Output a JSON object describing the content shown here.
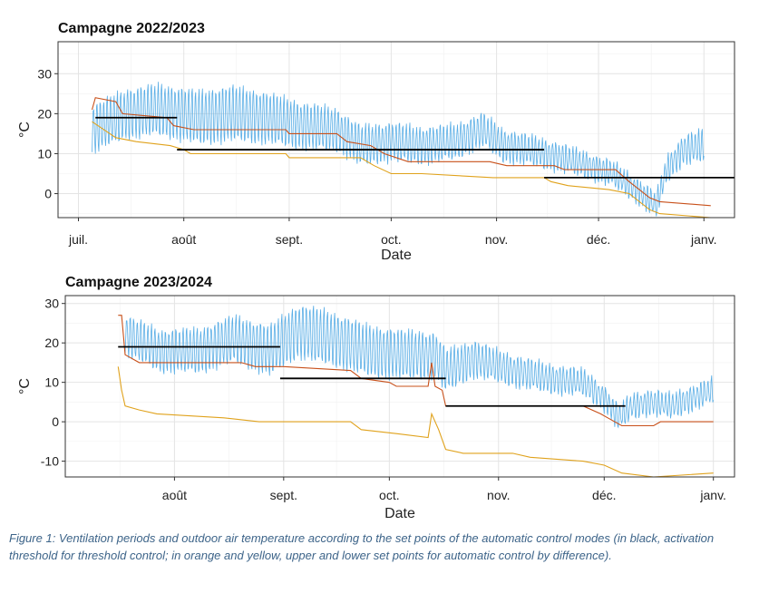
{
  "colors": {
    "outdoor": "#5aaee6",
    "upper": "#c8501a",
    "lower": "#e0a21c",
    "threshold": "#000000"
  },
  "caption": "Figure 1: Ventilation periods and outdoor air temperature according to the set points of the automatic control modes (in black, activation threshold for threshold control; in orange and yellow, upper and lower set points for automatic control by difference).",
  "chart_data": [
    {
      "type": "line",
      "title": "Campagne 2022/2023",
      "xlabel": "Date",
      "ylabel": "°C",
      "xlim": [
        "2022-06-25",
        "2023-01-10"
      ],
      "ylim": [
        -6,
        38
      ],
      "x_ticks": [
        {
          "date": "2022-07-01",
          "label": "juil."
        },
        {
          "date": "2022-08-01",
          "label": "août"
        },
        {
          "date": "2022-09-01",
          "label": "sept."
        },
        {
          "date": "2022-10-01",
          "label": "oct."
        },
        {
          "date": "2022-11-01",
          "label": "nov."
        },
        {
          "date": "2022-12-01",
          "label": "déc."
        },
        {
          "date": "2023-01-01",
          "label": "janv."
        }
      ],
      "y_ticks": [
        0,
        10,
        20,
        30
      ],
      "series": [
        {
          "key": "outdoor",
          "color_key": "outdoor",
          "baseline": [
            [
              "2022-07-05",
              16
            ],
            [
              "2022-07-15",
              20
            ],
            [
              "2022-07-25",
              21
            ],
            [
              "2022-08-05",
              19
            ],
            [
              "2022-08-15",
              20
            ],
            [
              "2022-08-25",
              19
            ],
            [
              "2022-09-05",
              17
            ],
            [
              "2022-09-15",
              16
            ],
            [
              "2022-09-22",
              12
            ],
            [
              "2022-10-01",
              13
            ],
            [
              "2022-10-10",
              12
            ],
            [
              "2022-10-20",
              13
            ],
            [
              "2022-10-28",
              16
            ],
            [
              "2022-11-03",
              12
            ],
            [
              "2022-11-10",
              11
            ],
            [
              "2022-11-20",
              9
            ],
            [
              "2022-11-28",
              7
            ],
            [
              "2022-12-05",
              5
            ],
            [
              "2022-12-12",
              1
            ],
            [
              "2022-12-18",
              -3
            ],
            [
              "2022-12-21",
              6
            ],
            [
              "2022-12-26",
              11
            ],
            [
              "2023-01-01",
              12
            ]
          ],
          "amplitude": [
            [
              "2022-07-05",
              6
            ],
            [
              "2022-08-15",
              7
            ],
            [
              "2022-09-20",
              5
            ],
            [
              "2022-11-01",
              4
            ],
            [
              "2022-12-01",
              3
            ],
            [
              "2022-12-20",
              3
            ],
            [
              "2023-01-01",
              4
            ]
          ]
        },
        {
          "key": "upper",
          "color_key": "upper",
          "points": [
            [
              "2022-07-05",
              21
            ],
            [
              "2022-07-06",
              24
            ],
            [
              "2022-07-12",
              23
            ],
            [
              "2022-07-14",
              20
            ],
            [
              "2022-07-27",
              19
            ],
            [
              "2022-07-29",
              17
            ],
            [
              "2022-08-04",
              16
            ],
            [
              "2022-08-31",
              16
            ],
            [
              "2022-09-01",
              15
            ],
            [
              "2022-09-15",
              15
            ],
            [
              "2022-09-18",
              13
            ],
            [
              "2022-09-25",
              12
            ],
            [
              "2022-09-29",
              10
            ],
            [
              "2022-10-06",
              8
            ],
            [
              "2022-10-30",
              8
            ],
            [
              "2022-11-04",
              7
            ],
            [
              "2022-11-18",
              7
            ],
            [
              "2022-11-21",
              6
            ],
            [
              "2022-12-06",
              6
            ],
            [
              "2022-12-10",
              3
            ],
            [
              "2022-12-13",
              1
            ],
            [
              "2022-12-16",
              -1
            ],
            [
              "2022-12-19",
              -2
            ],
            [
              "2023-01-03",
              -3
            ]
          ]
        },
        {
          "key": "lower",
          "color_key": "lower",
          "points": [
            [
              "2022-07-05",
              18
            ],
            [
              "2022-07-12",
              14
            ],
            [
              "2022-07-18",
              13
            ],
            [
              "2022-07-28",
              12
            ],
            [
              "2022-08-01",
              11
            ],
            [
              "2022-08-03",
              10
            ],
            [
              "2022-08-31",
              10
            ],
            [
              "2022-09-01",
              9
            ],
            [
              "2022-09-22",
              9
            ],
            [
              "2022-09-26",
              7
            ],
            [
              "2022-10-01",
              5
            ],
            [
              "2022-10-10",
              5
            ],
            [
              "2022-10-31",
              4
            ],
            [
              "2022-11-05",
              4
            ],
            [
              "2022-11-15",
              4
            ],
            [
              "2022-11-17",
              3
            ],
            [
              "2022-11-22",
              2
            ],
            [
              "2022-12-04",
              1
            ],
            [
              "2022-12-10",
              0
            ],
            [
              "2022-12-16",
              -4
            ],
            [
              "2022-12-19",
              -5
            ],
            [
              "2023-01-03",
              -6
            ]
          ]
        },
        {
          "key": "threshold",
          "color_key": "threshold",
          "segments": [
            {
              "x0": "2022-07-06",
              "x1": "2022-07-30",
              "y": 19
            },
            {
              "x0": "2022-07-30",
              "x1": "2022-11-15",
              "y": 11
            },
            {
              "x0": "2022-11-15",
              "x1": "2023-01-10",
              "y": 4
            }
          ]
        }
      ]
    },
    {
      "type": "line",
      "title": "Campagne 2023/2024",
      "xlabel": "Date",
      "ylabel": "°C",
      "xlim": [
        "2023-07-01",
        "2024-01-07"
      ],
      "ylim": [
        -14,
        32
      ],
      "x_ticks": [
        {
          "date": "2023-08-01",
          "label": "août"
        },
        {
          "date": "2023-09-01",
          "label": "sept."
        },
        {
          "date": "2023-10-01",
          "label": "oct."
        },
        {
          "date": "2023-11-01",
          "label": "nov."
        },
        {
          "date": "2023-12-01",
          "label": "déc."
        },
        {
          "date": "2024-01-01",
          "label": "janv."
        }
      ],
      "y_ticks": [
        -10,
        0,
        10,
        20,
        30
      ],
      "series": [
        {
          "key": "outdoor",
          "color_key": "outdoor",
          "baseline": [
            [
              "2023-07-18",
              22
            ],
            [
              "2023-07-28",
              18
            ],
            [
              "2023-08-08",
              18
            ],
            [
              "2023-08-18",
              21
            ],
            [
              "2023-08-28",
              18
            ],
            [
              "2023-09-05",
              23
            ],
            [
              "2023-09-15",
              21
            ],
            [
              "2023-09-25",
              18
            ],
            [
              "2023-10-05",
              17
            ],
            [
              "2023-10-14",
              17
            ],
            [
              "2023-10-17",
              13
            ],
            [
              "2023-10-20",
              14
            ],
            [
              "2023-10-25",
              16
            ],
            [
              "2023-11-05",
              13
            ],
            [
              "2023-11-15",
              11
            ],
            [
              "2023-11-25",
              10
            ],
            [
              "2023-12-01",
              6
            ],
            [
              "2023-12-05",
              1
            ],
            [
              "2023-12-09",
              4
            ],
            [
              "2023-12-14",
              5
            ],
            [
              "2023-12-20",
              4
            ],
            [
              "2023-12-26",
              6
            ],
            [
              "2024-01-01",
              8
            ]
          ],
          "amplitude": [
            [
              "2023-07-18",
              5
            ],
            [
              "2023-08-18",
              6
            ],
            [
              "2023-09-10",
              7
            ],
            [
              "2023-10-10",
              6
            ],
            [
              "2023-11-01",
              4
            ],
            [
              "2023-12-01",
              3
            ],
            [
              "2024-01-01",
              3
            ]
          ]
        },
        {
          "key": "upper",
          "color_key": "upper",
          "points": [
            [
              "2023-07-16",
              27
            ],
            [
              "2023-07-17",
              27
            ],
            [
              "2023-07-18",
              17
            ],
            [
              "2023-07-22",
              15
            ],
            [
              "2023-08-20",
              15
            ],
            [
              "2023-08-24",
              14
            ],
            [
              "2023-09-01",
              14
            ],
            [
              "2023-09-20",
              13
            ],
            [
              "2023-09-23",
              11
            ],
            [
              "2023-10-01",
              10
            ],
            [
              "2023-10-03",
              9
            ],
            [
              "2023-10-12",
              9
            ],
            [
              "2023-10-13",
              15
            ],
            [
              "2023-10-14",
              9
            ],
            [
              "2023-10-16",
              8
            ],
            [
              "2023-10-17",
              4
            ],
            [
              "2023-10-25",
              4
            ],
            [
              "2023-11-05",
              4
            ],
            [
              "2023-11-25",
              4
            ],
            [
              "2023-11-30",
              2
            ],
            [
              "2023-12-02",
              1
            ],
            [
              "2023-12-06",
              -1
            ],
            [
              "2023-12-15",
              -1
            ],
            [
              "2023-12-17",
              0
            ],
            [
              "2024-01-01",
              0
            ]
          ]
        },
        {
          "key": "lower",
          "color_key": "lower",
          "points": [
            [
              "2023-07-16",
              14
            ],
            [
              "2023-07-17",
              8
            ],
            [
              "2023-07-18",
              4
            ],
            [
              "2023-07-22",
              3
            ],
            [
              "2023-07-27",
              2
            ],
            [
              "2023-08-15",
              1
            ],
            [
              "2023-08-25",
              0
            ],
            [
              "2023-09-10",
              0
            ],
            [
              "2023-09-20",
              0
            ],
            [
              "2023-09-23",
              -2
            ],
            [
              "2023-10-03",
              -3
            ],
            [
              "2023-10-12",
              -4
            ],
            [
              "2023-10-13",
              2
            ],
            [
              "2023-10-15",
              -2
            ],
            [
              "2023-10-17",
              -7
            ],
            [
              "2023-10-22",
              -8
            ],
            [
              "2023-11-05",
              -8
            ],
            [
              "2023-11-10",
              -9
            ],
            [
              "2023-11-25",
              -10
            ],
            [
              "2023-12-01",
              -11
            ],
            [
              "2023-12-06",
              -13
            ],
            [
              "2023-12-15",
              -14
            ],
            [
              "2024-01-01",
              -13
            ]
          ]
        },
        {
          "key": "threshold",
          "color_key": "threshold",
          "segments": [
            {
              "x0": "2023-07-16",
              "x1": "2023-08-31",
              "y": 19
            },
            {
              "x0": "2023-08-31",
              "x1": "2023-10-17",
              "y": 11
            },
            {
              "x0": "2023-10-17",
              "x1": "2023-12-07",
              "y": 4
            }
          ]
        }
      ]
    }
  ]
}
